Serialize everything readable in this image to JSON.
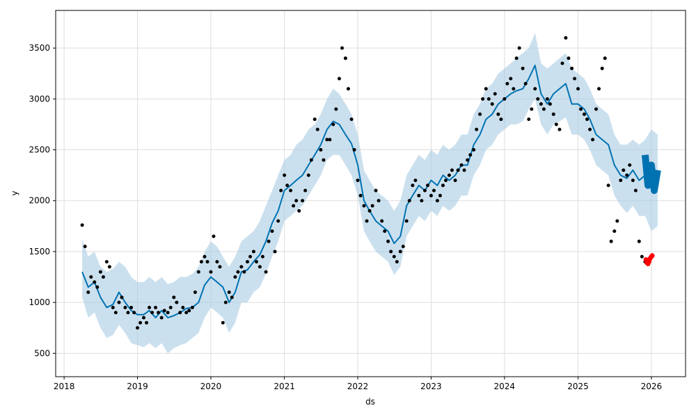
{
  "chart_data": {
    "type": "scatter",
    "xlabel": "ds",
    "ylabel": "y",
    "xlim": [
      "2017-11-20",
      "2026-06-20"
    ],
    "ylim": [
      270,
      3870
    ],
    "grid": true,
    "x_ticks": [
      "2018",
      "2019",
      "2020",
      "2021",
      "2022",
      "2023",
      "2024",
      "2025",
      "2026"
    ],
    "y_ticks": [
      500,
      1000,
      1500,
      2000,
      2500,
      3000,
      3500
    ],
    "colors": {
      "observed": "#000000",
      "forecast": "#0072B2",
      "interval": "#A9CCE3",
      "recent": "#FF0000",
      "grid": "#DDDDDD"
    },
    "series": [
      {
        "type": "line",
        "role": "forecast",
        "x": [
          "2018-04-01",
          "2018-05-01",
          "2018-06-01",
          "2018-07-01",
          "2018-08-01",
          "2018-09-01",
          "2018-10-01",
          "2018-11-01",
          "2018-12-01",
          "2019-01-01",
          "2019-02-01",
          "2019-03-01",
          "2019-04-01",
          "2019-05-01",
          "2019-06-01",
          "2019-07-01",
          "2019-08-01",
          "2019-09-01",
          "2019-10-01",
          "2019-11-01",
          "2019-12-01",
          "2020-01-01",
          "2020-02-01",
          "2020-03-01",
          "2020-04-01",
          "2020-05-01",
          "2020-06-01",
          "2020-07-01",
          "2020-08-01",
          "2020-09-01",
          "2020-10-01",
          "2020-11-01",
          "2020-12-01",
          "2021-01-01",
          "2021-02-01",
          "2021-03-01",
          "2021-04-01",
          "2021-05-01",
          "2021-06-01",
          "2021-07-01",
          "2021-08-01",
          "2021-09-01",
          "2021-10-01",
          "2021-11-01",
          "2021-12-01",
          "2022-01-01",
          "2022-02-01",
          "2022-03-01",
          "2022-04-01",
          "2022-05-01",
          "2022-06-01",
          "2022-07-01",
          "2022-08-01",
          "2022-09-01",
          "2022-10-01",
          "2022-11-01",
          "2022-12-01",
          "2023-01-01",
          "2023-02-01",
          "2023-03-01",
          "2023-04-01",
          "2023-05-01",
          "2023-06-01",
          "2023-07-01",
          "2023-08-01",
          "2023-09-01",
          "2023-10-01",
          "2023-11-01",
          "2023-12-01",
          "2024-01-01",
          "2024-02-01",
          "2024-03-01",
          "2024-04-01",
          "2024-05-01",
          "2024-06-01",
          "2024-07-01",
          "2024-08-01",
          "2024-09-01",
          "2024-10-01",
          "2024-11-01",
          "2024-12-01",
          "2025-01-01",
          "2025-02-01",
          "2025-03-01",
          "2025-04-01",
          "2025-05-01",
          "2025-06-01",
          "2025-07-01",
          "2025-08-01",
          "2025-09-01",
          "2025-10-01",
          "2025-11-01",
          "2025-12-01",
          "2026-01-01",
          "2026-02-01"
        ],
        "y": [
          1300,
          1150,
          1200,
          1050,
          950,
          980,
          1100,
          1000,
          920,
          880,
          880,
          920,
          850,
          920,
          850,
          870,
          900,
          940,
          950,
          1000,
          1170,
          1250,
          1200,
          1150,
          1000,
          1100,
          1300,
          1320,
          1400,
          1470,
          1600,
          1780,
          1900,
          2100,
          2150,
          2200,
          2250,
          2350,
          2450,
          2550,
          2700,
          2780,
          2750,
          2650,
          2560,
          2350,
          2000,
          1900,
          1800,
          1750,
          1700,
          1580,
          1650,
          1950,
          2050,
          2150,
          2100,
          2200,
          2150,
          2250,
          2200,
          2250,
          2350,
          2350,
          2550,
          2650,
          2800,
          2850,
          2950,
          3000,
          3050,
          3080,
          3100,
          3200,
          3330,
          3050,
          2950,
          3050,
          3100,
          3150,
          2950,
          2950,
          2900,
          2800,
          2650,
          2600,
          2550,
          2350,
          2250,
          2220,
          2300,
          2200,
          2250,
          2150,
          2200
        ]
      },
      {
        "type": "band",
        "role": "uncertainty",
        "x": [
          "2018-04-01",
          "2018-05-01",
          "2018-06-01",
          "2018-07-01",
          "2018-08-01",
          "2018-09-01",
          "2018-10-01",
          "2018-11-01",
          "2018-12-01",
          "2019-01-01",
          "2019-02-01",
          "2019-03-01",
          "2019-04-01",
          "2019-05-01",
          "2019-06-01",
          "2019-07-01",
          "2019-08-01",
          "2019-09-01",
          "2019-10-01",
          "2019-11-01",
          "2019-12-01",
          "2020-01-01",
          "2020-02-01",
          "2020-03-01",
          "2020-04-01",
          "2020-05-01",
          "2020-06-01",
          "2020-07-01",
          "2020-08-01",
          "2020-09-01",
          "2020-10-01",
          "2020-11-01",
          "2020-12-01",
          "2021-01-01",
          "2021-02-01",
          "2021-03-01",
          "2021-04-01",
          "2021-05-01",
          "2021-06-01",
          "2021-07-01",
          "2021-08-01",
          "2021-09-01",
          "2021-10-01",
          "2021-11-01",
          "2021-12-01",
          "2022-01-01",
          "2022-02-01",
          "2022-03-01",
          "2022-04-01",
          "2022-05-01",
          "2022-06-01",
          "2022-07-01",
          "2022-08-01",
          "2022-09-01",
          "2022-10-01",
          "2022-11-01",
          "2022-12-01",
          "2023-01-01",
          "2023-02-01",
          "2023-03-01",
          "2023-04-01",
          "2023-05-01",
          "2023-06-01",
          "2023-07-01",
          "2023-08-01",
          "2023-09-01",
          "2023-10-01",
          "2023-11-01",
          "2023-12-01",
          "2024-01-01",
          "2024-02-01",
          "2024-03-01",
          "2024-04-01",
          "2024-05-01",
          "2024-06-01",
          "2024-07-01",
          "2024-08-01",
          "2024-09-01",
          "2024-10-01",
          "2024-11-01",
          "2024-12-01",
          "2025-01-01",
          "2025-02-01",
          "2025-03-01",
          "2025-04-01",
          "2025-05-01",
          "2025-06-01",
          "2025-07-01",
          "2025-08-01",
          "2025-09-01",
          "2025-10-01",
          "2025-11-01",
          "2025-12-01",
          "2026-01-01",
          "2026-02-01"
        ],
        "upper": [
          1620,
          1450,
          1500,
          1350,
          1300,
          1330,
          1400,
          1350,
          1250,
          1200,
          1200,
          1250,
          1200,
          1250,
          1180,
          1200,
          1250,
          1250,
          1280,
          1350,
          1500,
          1600,
          1550,
          1450,
          1350,
          1450,
          1600,
          1650,
          1700,
          1800,
          1950,
          2100,
          2250,
          2400,
          2450,
          2550,
          2600,
          2700,
          2750,
          2850,
          3000,
          3100,
          3050,
          2950,
          2850,
          2650,
          2300,
          2200,
          2100,
          2050,
          2000,
          1900,
          2000,
          2250,
          2350,
          2450,
          2400,
          2500,
          2450,
          2550,
          2500,
          2550,
          2650,
          2650,
          2850,
          2950,
          3100,
          3150,
          3250,
          3300,
          3350,
          3400,
          3450,
          3500,
          3650,
          3350,
          3300,
          3350,
          3400,
          3450,
          3300,
          3250,
          3200,
          3100,
          2950,
          2900,
          2850,
          2650,
          2550,
          2550,
          2600,
          2550,
          2600,
          2700,
          2650
        ],
        "lower": [
          1050,
          850,
          900,
          750,
          650,
          680,
          780,
          700,
          600,
          580,
          560,
          600,
          550,
          600,
          500,
          550,
          580,
          600,
          650,
          700,
          850,
          950,
          900,
          850,
          700,
          800,
          1000,
          1000,
          1100,
          1150,
          1280,
          1450,
          1600,
          1800,
          1850,
          1900,
          1950,
          2050,
          2150,
          2250,
          2400,
          2450,
          2450,
          2350,
          2250,
          2050,
          1700,
          1600,
          1500,
          1450,
          1400,
          1270,
          1350,
          1650,
          1750,
          1850,
          1800,
          1900,
          1850,
          1950,
          1900,
          1950,
          2050,
          2050,
          2250,
          2350,
          2500,
          2550,
          2650,
          2700,
          2750,
          2750,
          2780,
          2900,
          3000,
          2750,
          2650,
          2750,
          2780,
          2820,
          2650,
          2650,
          2600,
          2500,
          2350,
          2300,
          2250,
          2050,
          1950,
          1880,
          1950,
          1850,
          1850,
          1700,
          1750
        ]
      },
      {
        "type": "scatter",
        "role": "observed",
        "x": [
          "2018-04-01",
          "2018-04-15",
          "2018-05-01",
          "2018-05-15",
          "2018-06-01",
          "2018-06-15",
          "2018-07-01",
          "2018-07-15",
          "2018-08-01",
          "2018-08-15",
          "2018-09-01",
          "2018-09-15",
          "2018-10-01",
          "2018-10-15",
          "2018-11-01",
          "2018-11-15",
          "2018-12-01",
          "2018-12-15",
          "2019-01-01",
          "2019-01-15",
          "2019-02-01",
          "2019-02-15",
          "2019-03-01",
          "2019-03-15",
          "2019-04-01",
          "2019-04-15",
          "2019-05-01",
          "2019-05-15",
          "2019-06-01",
          "2019-06-15",
          "2019-07-01",
          "2019-07-15",
          "2019-08-01",
          "2019-08-15",
          "2019-09-01",
          "2019-09-15",
          "2019-10-01",
          "2019-10-15",
          "2019-11-01",
          "2019-11-15",
          "2019-12-01",
          "2019-12-15",
          "2020-01-01",
          "2020-01-15",
          "2020-02-01",
          "2020-02-15",
          "2020-03-01",
          "2020-03-15",
          "2020-04-01",
          "2020-04-15",
          "2020-05-01",
          "2020-05-15",
          "2020-06-01",
          "2020-06-15",
          "2020-07-01",
          "2020-07-15",
          "2020-08-01",
          "2020-08-15",
          "2020-09-01",
          "2020-09-15",
          "2020-10-01",
          "2020-10-15",
          "2020-11-01",
          "2020-11-15",
          "2020-12-01",
          "2020-12-15",
          "2021-01-01",
          "2021-01-15",
          "2021-02-01",
          "2021-02-15",
          "2021-03-01",
          "2021-03-15",
          "2021-04-01",
          "2021-04-15",
          "2021-05-01",
          "2021-05-15",
          "2021-06-01",
          "2021-06-15",
          "2021-07-01",
          "2021-07-15",
          "2021-08-01",
          "2021-08-15",
          "2021-09-01",
          "2021-09-15",
          "2021-10-01",
          "2021-10-15",
          "2021-11-01",
          "2021-11-15",
          "2021-12-01",
          "2021-12-15",
          "2022-01-01",
          "2022-01-15",
          "2022-02-01",
          "2022-02-15",
          "2022-03-01",
          "2022-03-15",
          "2022-04-01",
          "2022-04-15",
          "2022-05-01",
          "2022-05-15",
          "2022-06-01",
          "2022-06-15",
          "2022-07-01",
          "2022-07-15",
          "2022-08-01",
          "2022-08-15",
          "2022-09-01",
          "2022-09-15",
          "2022-10-01",
          "2022-10-15",
          "2022-11-01",
          "2022-11-15",
          "2022-12-01",
          "2022-12-15",
          "2023-01-01",
          "2023-01-15",
          "2023-02-01",
          "2023-02-15",
          "2023-03-01",
          "2023-03-15",
          "2023-04-01",
          "2023-04-15",
          "2023-05-01",
          "2023-05-15",
          "2023-06-01",
          "2023-06-15",
          "2023-07-01",
          "2023-07-15",
          "2023-08-01",
          "2023-08-15",
          "2023-09-01",
          "2023-09-15",
          "2023-10-01",
          "2023-10-15",
          "2023-11-01",
          "2023-11-15",
          "2023-12-01",
          "2023-12-15",
          "2024-01-01",
          "2024-01-15",
          "2024-02-01",
          "2024-02-15",
          "2024-03-01",
          "2024-03-15",
          "2024-04-01",
          "2024-04-15",
          "2024-05-01",
          "2024-05-15",
          "2024-06-01",
          "2024-06-15",
          "2024-07-01",
          "2024-07-15",
          "2024-08-01",
          "2024-08-15",
          "2024-09-01",
          "2024-09-15",
          "2024-10-01",
          "2024-10-15",
          "2024-11-01",
          "2024-11-15",
          "2024-12-01",
          "2024-12-15",
          "2025-01-01",
          "2025-01-15",
          "2025-02-01",
          "2025-02-15",
          "2025-03-01",
          "2025-03-15",
          "2025-04-01",
          "2025-04-15",
          "2025-05-01",
          "2025-05-15",
          "2025-06-01",
          "2025-06-15",
          "2025-07-01",
          "2025-07-15",
          "2025-08-01",
          "2025-08-15",
          "2025-09-01",
          "2025-09-15",
          "2025-10-01",
          "2025-10-15",
          "2025-11-01",
          "2025-11-15",
          "2025-12-01"
        ],
        "y": [
          1760,
          1550,
          1100,
          1250,
          1200,
          1150,
          1300,
          1250,
          1400,
          1350,
          950,
          900,
          1000,
          1050,
          950,
          900,
          950,
          900,
          750,
          800,
          850,
          800,
          950,
          900,
          950,
          900,
          850,
          920,
          900,
          950,
          1050,
          1000,
          900,
          950,
          900,
          920,
          950,
          1100,
          1300,
          1400,
          1450,
          1400,
          1300,
          1650,
          1400,
          1350,
          800,
          1000,
          1100,
          1050,
          1250,
          1300,
          1350,
          1300,
          1400,
          1450,
          1500,
          1400,
          1350,
          1450,
          1300,
          1600,
          1700,
          1500,
          1800,
          2100,
          2250,
          2150,
          2100,
          1950,
          2000,
          1900,
          2000,
          2100,
          2250,
          2400,
          2800,
          2700,
          2500,
          2400,
          2600,
          2600,
          2750,
          2900,
          3200,
          3500,
          3400,
          3100,
          2800,
          2500,
          2200,
          2050,
          1950,
          1800,
          1900,
          1950,
          2100,
          2000,
          1800,
          1700,
          1600,
          1500,
          1450,
          1400,
          1500,
          1550,
          1800,
          2000,
          2150,
          2200,
          2050,
          2000,
          2100,
          2150,
          2050,
          2100,
          2000,
          2050,
          2150,
          2200,
          2250,
          2300,
          2200,
          2300,
          2350,
          2300,
          2400,
          2450,
          2500,
          2700,
          2850,
          3000,
          3100,
          3000,
          2950,
          3050,
          2850,
          2800,
          3000,
          3150,
          3200,
          3100,
          3400,
          3500,
          3300,
          3150,
          2800,
          2900,
          3100,
          3000,
          2950,
          2900,
          3000,
          2950,
          2850,
          2750,
          2700,
          3350,
          3600,
          3400,
          3300,
          3200,
          3100,
          2900,
          2850,
          2800,
          2700,
          2600,
          2900,
          3100,
          3300,
          3400,
          2150,
          1600,
          1700,
          1800,
          2200,
          2300,
          2250,
          2350,
          2200,
          2100,
          1600,
          1450,
          1400
        ]
      },
      {
        "type": "scatter",
        "role": "recent",
        "x": [
          "2025-12-05",
          "2025-12-10",
          "2025-12-15",
          "2025-12-20",
          "2025-12-25",
          "2026-01-01",
          "2026-01-05"
        ],
        "y": [
          1420,
          1390,
          1380,
          1400,
          1430,
          1450,
          1460
        ]
      },
      {
        "type": "line",
        "role": "forecast-future",
        "x": [
          "2025-12-01",
          "2025-12-15",
          "2026-01-01",
          "2026-01-15",
          "2026-02-01"
        ],
        "y": [
          2450,
          2150,
          2350,
          2100,
          2300
        ]
      }
    ]
  }
}
